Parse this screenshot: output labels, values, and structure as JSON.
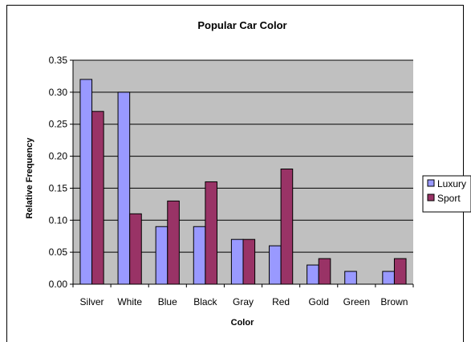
{
  "chart_data": {
    "type": "bar",
    "title": "Popular Car Color",
    "xlabel": "Color",
    "ylabel": "Relative Frequency",
    "categories": [
      "Silver",
      "White",
      "Blue",
      "Black",
      "Gray",
      "Red",
      "Gold",
      "Green",
      "Brown"
    ],
    "series": [
      {
        "name": "Luxury",
        "color": "#9999ff",
        "values": [
          0.32,
          0.3,
          0.09,
          0.09,
          0.07,
          0.06,
          0.03,
          0.02,
          0.02
        ]
      },
      {
        "name": "Sport",
        "color": "#993366",
        "values": [
          0.27,
          0.11,
          0.13,
          0.16,
          0.07,
          0.18,
          0.04,
          0.0,
          0.04
        ]
      }
    ],
    "ylim": [
      0,
      0.35
    ],
    "yticks": [
      "0.00",
      "0.05",
      "0.10",
      "0.15",
      "0.20",
      "0.25",
      "0.30",
      "0.35"
    ],
    "plot_background": "#c0c0c0",
    "grid": true,
    "legend_position": "right"
  }
}
